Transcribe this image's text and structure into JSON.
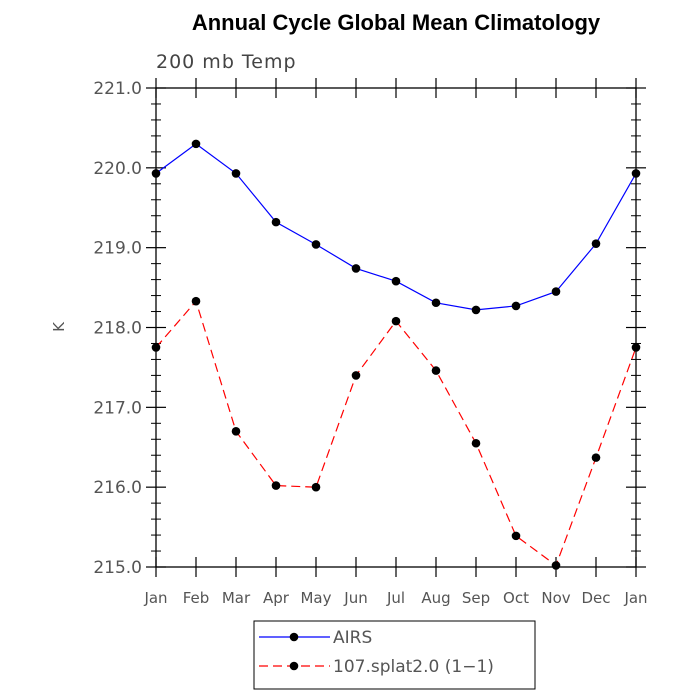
{
  "chart_data": {
    "type": "line",
    "title": "Annual Cycle Global Mean Climatology",
    "subtitle": "200 mb Temp",
    "xlabel": "",
    "ylabel": "K",
    "categories": [
      "Jan",
      "Feb",
      "Mar",
      "Apr",
      "May",
      "Jun",
      "Jul",
      "Aug",
      "Sep",
      "Oct",
      "Nov",
      "Dec",
      "Jan"
    ],
    "ylim": [
      215.0,
      221.0
    ],
    "yticks": [
      "215.0",
      "216.0",
      "217.0",
      "218.0",
      "219.0",
      "220.0",
      "221.0"
    ],
    "grid": false,
    "legend_position": "bottom",
    "series": [
      {
        "name": "AIRS",
        "color": "#0000ff",
        "line_style": "solid",
        "values": [
          219.93,
          220.3,
          219.93,
          219.32,
          219.04,
          218.74,
          218.58,
          218.31,
          218.22,
          218.27,
          218.45,
          219.05,
          219.93
        ]
      },
      {
        "name": "107.splat2.0 (1−1)",
        "color": "#ff0000",
        "line_style": "dashed",
        "values": [
          217.75,
          218.33,
          216.7,
          216.02,
          216.0,
          217.4,
          218.08,
          217.46,
          216.55,
          215.39,
          215.02,
          216.37,
          217.75
        ]
      }
    ]
  }
}
